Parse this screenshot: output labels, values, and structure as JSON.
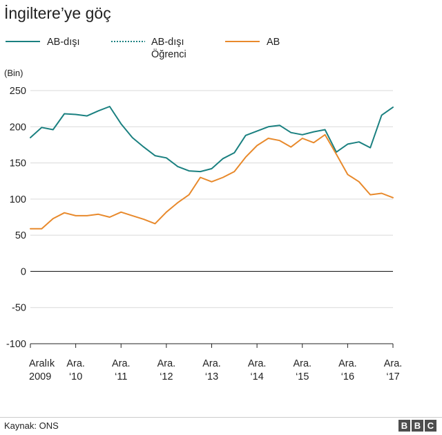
{
  "chart_data": {
    "type": "line",
    "title": "İngiltere’ye göç",
    "ylabel": "(Bin)",
    "ylim": [
      -100,
      250
    ],
    "yticks": [
      250,
      200,
      150,
      100,
      50,
      0,
      -50,
      -100
    ],
    "x_count": 32,
    "xticks": [
      {
        "index": 0,
        "line1": "Aralık",
        "line2": "2009"
      },
      {
        "index": 4,
        "line1": "Ara.",
        "line2": "‘10"
      },
      {
        "index": 8,
        "line1": "Ara.",
        "line2": "‘11"
      },
      {
        "index": 12,
        "line1": "Ara.",
        "line2": "‘12"
      },
      {
        "index": 16,
        "line1": "Ara.",
        "line2": "‘13"
      },
      {
        "index": 20,
        "line1": "Ara.",
        "line2": "‘14"
      },
      {
        "index": 24,
        "line1": "Ara.",
        "line2": "‘15"
      },
      {
        "index": 28,
        "line1": "Ara.",
        "line2": "‘16"
      },
      {
        "index": 32,
        "line1": "Ara.",
        "line2": "‘17"
      }
    ],
    "series": [
      {
        "name": "AB-dışı",
        "color": "#1a8080",
        "dash": "solid",
        "values": [
          185,
          199,
          196,
          218,
          217,
          215,
          222,
          228,
          204,
          185,
          172,
          160,
          157,
          145,
          139,
          138,
          142,
          156,
          164,
          188,
          194,
          200,
          202,
          192,
          189,
          193,
          196,
          165,
          176,
          179,
          171,
          216,
          227
        ]
      },
      {
        "name": "AB-dışı Öğrenci",
        "color": "#1a8080",
        "dash": "dotted",
        "values": []
      },
      {
        "name": "AB",
        "color": "#e8892b",
        "dash": "solid",
        "values": [
          59,
          59,
          73,
          81,
          77,
          77,
          79,
          75,
          82,
          77,
          72,
          66,
          82,
          95,
          106,
          130,
          124,
          130,
          138,
          158,
          174,
          184,
          181,
          172,
          184,
          178,
          189,
          162,
          134,
          124,
          106,
          108,
          102
        ]
      }
    ],
    "legend": [
      {
        "line1": "AB-dışı",
        "line2": ""
      },
      {
        "line1": "AB-dışı",
        "line2": "Öğrenci"
      },
      {
        "line1": "AB",
        "line2": ""
      }
    ]
  },
  "footer": {
    "source": "Kaynak: ONS",
    "logo_letters": [
      "B",
      "B",
      "C"
    ]
  }
}
